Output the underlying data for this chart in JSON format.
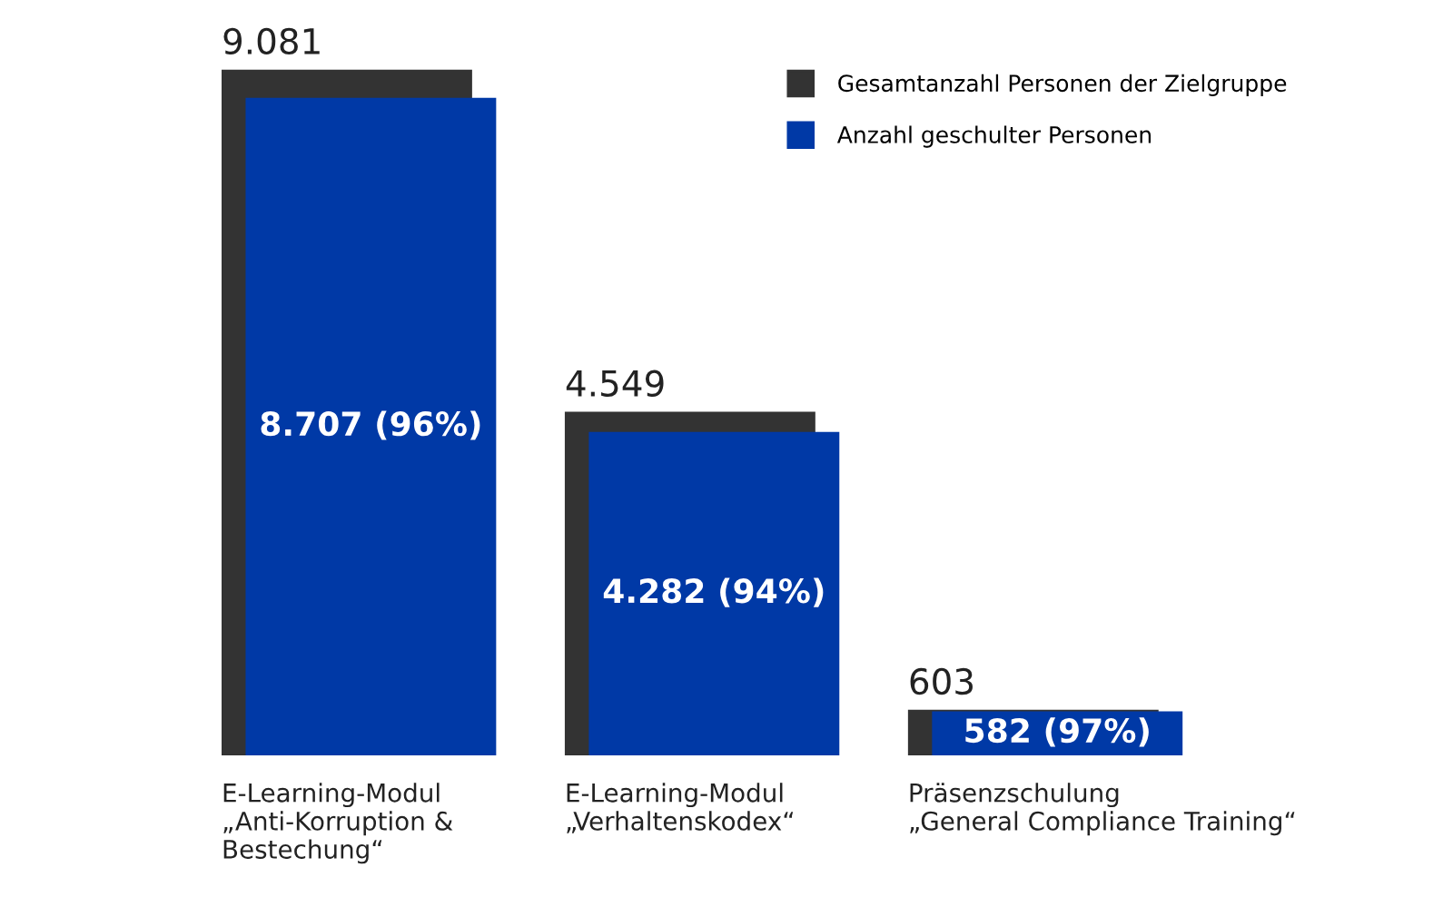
{
  "chart_data": {
    "type": "bar",
    "categories": [
      "E-Learning-Modul\n„Anti-Korruption &\nBestechung“",
      "E-Learning-Modul\n„Verhaltenskodex“",
      "Präsenzschulung\n„General Compliance Training“"
    ],
    "series": [
      {
        "name": "Gesamtanzahl Personen der Zielgruppe",
        "color": "#333333",
        "values": [
          9081,
          4549,
          603
        ],
        "value_labels": [
          "9.081",
          "4.549",
          "603"
        ]
      },
      {
        "name": "Anzahl geschulter Personen",
        "color": "#0039a6",
        "values": [
          8707,
          4282,
          582
        ],
        "value_labels": [
          "8.707 (96%)",
          "4.282 (94%)",
          "582 (97%)"
        ]
      }
    ],
    "legend": "top right"
  }
}
